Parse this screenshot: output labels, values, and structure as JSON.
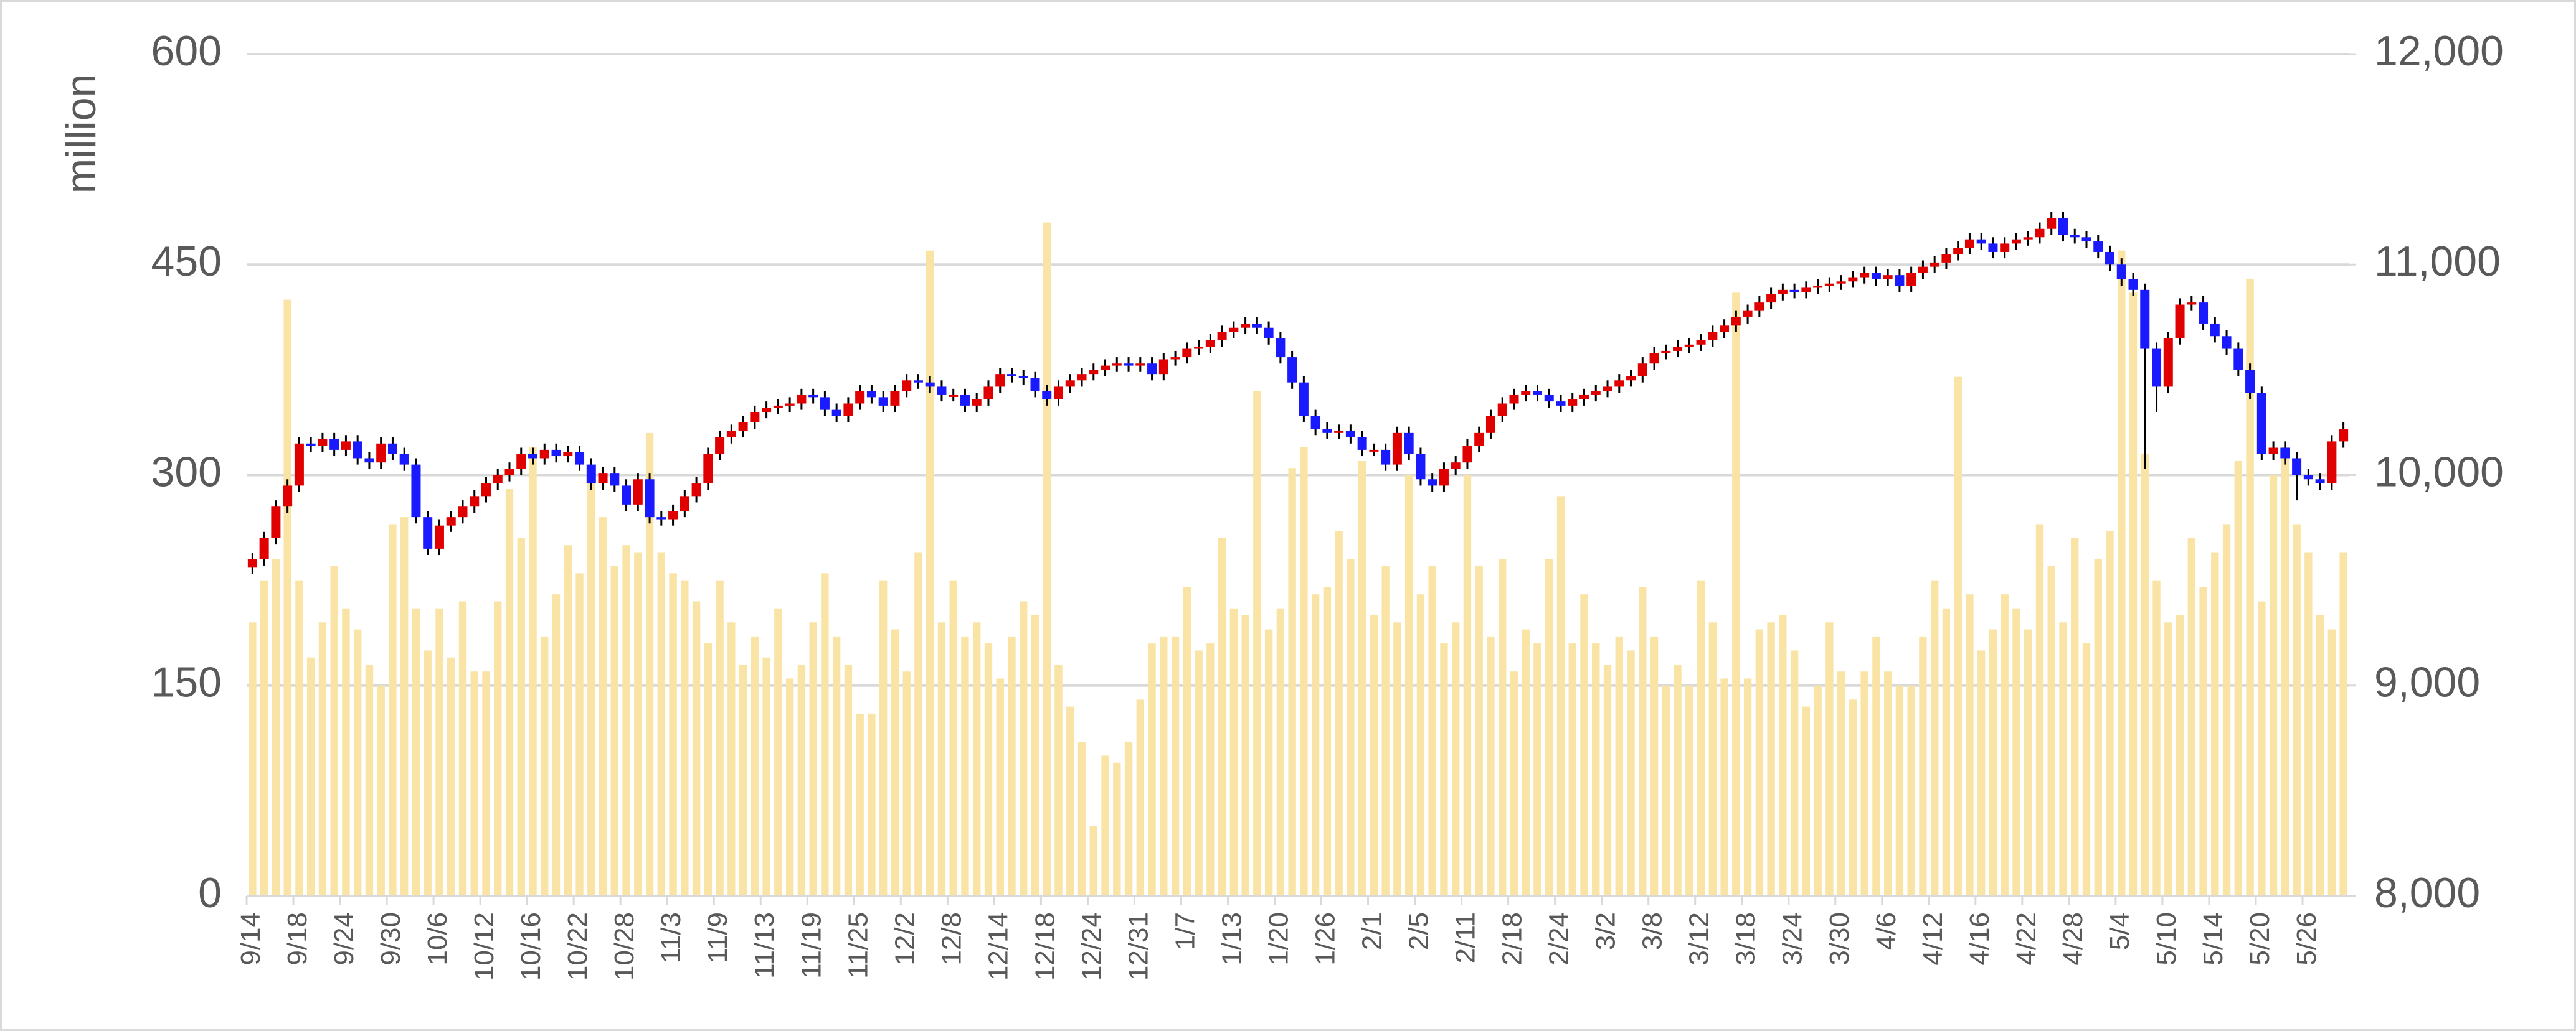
{
  "chart_data": {
    "type": "candlestick",
    "y_label": "million",
    "ylim": [
      0,
      600
    ],
    "yticks": [
      0,
      150,
      300,
      450,
      600
    ],
    "y2lim": [
      8000,
      12000
    ],
    "y2ticks": [
      {
        "value": 8000,
        "label": "8,000"
      },
      {
        "value": 9000,
        "label": "9,000"
      },
      {
        "value": 10000,
        "label": "10,000"
      },
      {
        "value": 11000,
        "label": "11,000"
      },
      {
        "value": 12000,
        "label": "12,000"
      }
    ],
    "grid": true,
    "up_color": "#e00000",
    "down_color": "#1a1aff",
    "wick_color": "#000000",
    "categories": [
      "9/14",
      null,
      null,
      null,
      "9/18",
      null,
      null,
      null,
      "9/24",
      null,
      null,
      null,
      "9/30",
      null,
      null,
      null,
      "10/6",
      null,
      null,
      null,
      "10/12",
      null,
      null,
      null,
      "10/16",
      null,
      null,
      null,
      "10/22",
      null,
      null,
      null,
      "10/28",
      null,
      null,
      null,
      "11/3",
      null,
      null,
      null,
      "11/9",
      null,
      null,
      null,
      "11/13",
      null,
      null,
      null,
      "11/19",
      null,
      null,
      null,
      "11/25",
      null,
      null,
      null,
      "12/2",
      null,
      null,
      null,
      "12/8",
      null,
      null,
      null,
      "12/14",
      null,
      null,
      null,
      "12/18",
      null,
      null,
      null,
      "12/24",
      null,
      null,
      null,
      "12/31",
      null,
      null,
      null,
      "1/7",
      null,
      null,
      null,
      "1/13",
      null,
      null,
      null,
      "1/20",
      null,
      null,
      null,
      "1/26",
      null,
      null,
      null,
      "2/1",
      null,
      null,
      null,
      "2/5",
      null,
      null,
      null,
      "2/11",
      null,
      null,
      null,
      "2/18",
      null,
      null,
      null,
      "2/24",
      null,
      null,
      null,
      "3/2",
      null,
      null,
      null,
      "3/8",
      null,
      null,
      null,
      "3/12",
      null,
      null,
      null,
      "3/18",
      null,
      null,
      null,
      "3/24",
      null,
      null,
      null,
      "3/30",
      null,
      null,
      null,
      "4/6",
      null,
      null,
      null,
      "4/12",
      null,
      null,
      null,
      "4/16",
      null,
      null,
      null,
      "4/22",
      null,
      null,
      null,
      "4/28",
      null,
      null,
      null,
      "5/4",
      null,
      null,
      null,
      "5/10",
      null,
      null,
      null,
      "5/14",
      null,
      null,
      null,
      "5/20",
      null,
      null,
      null,
      "5/26",
      null,
      null,
      null
    ],
    "open": [
      9560,
      9600,
      9700,
      9850,
      9950,
      10150,
      10140,
      10170,
      10120,
      10160,
      10080,
      10060,
      10150,
      10100,
      10050,
      9800,
      9650,
      9760,
      9800,
      9850,
      9900,
      9960,
      10000,
      10030,
      10100,
      10080,
      10120,
      10090,
      10110,
      10050,
      9960,
      10010,
      9950,
      9860,
      9980,
      9800,
      9790,
      9830,
      9900,
      9960,
      10100,
      10180,
      10210,
      10250,
      10300,
      10320,
      10330,
      10340,
      10380,
      10370,
      10310,
      10280,
      10340,
      10400,
      10370,
      10330,
      10400,
      10450,
      10440,
      10420,
      10380,
      10380,
      10330,
      10360,
      10420,
      10480,
      10470,
      10460,
      10400,
      10360,
      10420,
      10450,
      10480,
      10500,
      10520,
      10530,
      10520,
      10530,
      10480,
      10550,
      10560,
      10600,
      10610,
      10640,
      10680,
      10700,
      10720,
      10700,
      10650,
      10560,
      10440,
      10280,
      10220,
      10200,
      10210,
      10180,
      10120,
      10120,
      10050,
      10200,
      10100,
      9980,
      9950,
      10030,
      10060,
      10140,
      10200,
      10280,
      10340,
      10380,
      10400,
      10380,
      10350,
      10330,
      10360,
      10380,
      10400,
      10420,
      10450,
      10470,
      10530,
      10580,
      10590,
      10610,
      10620,
      10640,
      10680,
      10710,
      10750,
      10780,
      10820,
      10860,
      10880,
      10870,
      10890,
      10900,
      10910,
      10920,
      10940,
      10960,
      10930,
      10950,
      10900,
      10960,
      10990,
      11010,
      11050,
      11080,
      11120,
      11100,
      11060,
      11100,
      11120,
      11130,
      11170,
      11220,
      11140,
      11130,
      11110,
      11060,
      11000,
      10930,
      10880,
      10600,
      10420,
      10650,
      10810,
      10820,
      10720,
      10660,
      10600,
      10500,
      10390,
      10100,
      10130,
      10080,
      10000,
      9980,
      9960,
      10160
    ],
    "high": [
      9630,
      9730,
      9880,
      9980,
      10180,
      10180,
      10200,
      10200,
      10190,
      10190,
      10110,
      10180,
      10180,
      10130,
      10080,
      9830,
      9790,
      9830,
      9880,
      9930,
      9990,
      10030,
      10060,
      10130,
      10130,
      10150,
      10150,
      10140,
      10140,
      10080,
      10040,
      10040,
      9980,
      10010,
      10010,
      9830,
      9860,
      9930,
      9990,
      10130,
      10210,
      10240,
      10280,
      10330,
      10350,
      10360,
      10370,
      10410,
      10410,
      10400,
      10340,
      10370,
      10430,
      10430,
      10400,
      10430,
      10480,
      10480,
      10470,
      10450,
      10410,
      10410,
      10390,
      10450,
      10510,
      10510,
      10500,
      10490,
      10430,
      10450,
      10480,
      10510,
      10530,
      10550,
      10560,
      10560,
      10560,
      10560,
      10580,
      10590,
      10630,
      10640,
      10670,
      10710,
      10730,
      10750,
      10750,
      10730,
      10680,
      10590,
      10470,
      10310,
      10250,
      10240,
      10240,
      10210,
      10150,
      10150,
      10230,
      10230,
      10130,
      10010,
      10060,
      10090,
      10170,
      10230,
      10310,
      10370,
      10410,
      10430,
      10430,
      10410,
      10380,
      10390,
      10410,
      10430,
      10450,
      10480,
      10500,
      10560,
      10610,
      10620,
      10640,
      10650,
      10670,
      10710,
      10740,
      10780,
      10810,
      10850,
      10890,
      10910,
      10910,
      10920,
      10930,
      10940,
      10950,
      10970,
      10990,
      10990,
      10980,
      10980,
      10990,
      11020,
      11040,
      11080,
      11110,
      11150,
      11150,
      11130,
      11130,
      11150,
      11160,
      11200,
      11250,
      11250,
      11170,
      11160,
      11140,
      11090,
      11030,
      10960,
      10910,
      10630,
      10680,
      10840,
      10850,
      10850,
      10750,
      10690,
      10630,
      10530,
      10420,
      10160,
      10160,
      10110,
      10030,
      10010,
      10190,
      10250
    ],
    "low": [
      9530,
      9570,
      9670,
      9820,
      9920,
      10110,
      10110,
      10090,
      10090,
      10050,
      10030,
      10030,
      10070,
      10020,
      9770,
      9620,
      9620,
      9730,
      9770,
      9820,
      9870,
      9930,
      9970,
      10000,
      10050,
      10050,
      10060,
      10060,
      10020,
      9930,
      9930,
      9920,
      9830,
      9830,
      9770,
      9760,
      9760,
      9800,
      9870,
      9930,
      10070,
      10150,
      10180,
      10220,
      10270,
      10290,
      10300,
      10310,
      10340,
      10280,
      10250,
      10250,
      10310,
      10340,
      10300,
      10300,
      10370,
      10410,
      10390,
      10350,
      10350,
      10300,
      10300,
      10330,
      10390,
      10440,
      10430,
      10370,
      10330,
      10330,
      10390,
      10420,
      10450,
      10470,
      10490,
      10490,
      10490,
      10450,
      10450,
      10520,
      10530,
      10570,
      10580,
      10610,
      10650,
      10670,
      10670,
      10620,
      10530,
      10410,
      10250,
      10190,
      10170,
      10170,
      10150,
      10090,
      10090,
      10020,
      10020,
      10070,
      9950,
      9920,
      9920,
      10000,
      10030,
      10110,
      10170,
      10250,
      10310,
      10350,
      10350,
      10320,
      10300,
      10300,
      10330,
      10350,
      10370,
      10390,
      10420,
      10440,
      10500,
      10550,
      10560,
      10580,
      10590,
      10610,
      10650,
      10680,
      10720,
      10750,
      10790,
      10830,
      10840,
      10840,
      10860,
      10870,
      10880,
      10890,
      10910,
      10900,
      10900,
      10870,
      10870,
      10930,
      10960,
      10980,
      11020,
      11050,
      11070,
      11030,
      11030,
      11070,
      11090,
      11100,
      11140,
      11110,
      11100,
      11080,
      11030,
      10970,
      10900,
      10850,
      10030,
      10300,
      10390,
      10620,
      10780,
      10690,
      10630,
      10570,
      10470,
      10360,
      10070,
      10070,
      10050,
      9880,
      9950,
      9930,
      9930,
      10130
    ],
    "close": [
      9600,
      9700,
      9850,
      9950,
      10150,
      10140,
      10170,
      10120,
      10160,
      10080,
      10060,
      10150,
      10100,
      10050,
      9800,
      9650,
      9760,
      9800,
      9850,
      9900,
      9960,
      10000,
      10030,
      10100,
      10080,
      10120,
      10090,
      10110,
      10050,
      9960,
      10010,
      9950,
      9860,
      9980,
      9800,
      9790,
      9830,
      9900,
      9960,
      10100,
      10180,
      10210,
      10250,
      10300,
      10320,
      10330,
      10340,
      10380,
      10370,
      10310,
      10280,
      10340,
      10400,
      10370,
      10330,
      10400,
      10450,
      10440,
      10420,
      10380,
      10380,
      10330,
      10360,
      10420,
      10480,
      10470,
      10460,
      10400,
      10360,
      10420,
      10450,
      10480,
      10500,
      10520,
      10530,
      10520,
      10530,
      10480,
      10550,
      10560,
      10600,
      10610,
      10640,
      10680,
      10700,
      10720,
      10700,
      10650,
      10560,
      10440,
      10280,
      10220,
      10200,
      10210,
      10180,
      10120,
      10120,
      10050,
      10200,
      10100,
      9980,
      9950,
      10030,
      10060,
      10140,
      10200,
      10280,
      10340,
      10380,
      10400,
      10380,
      10350,
      10330,
      10360,
      10380,
      10400,
      10420,
      10450,
      10470,
      10530,
      10580,
      10590,
      10610,
      10620,
      10640,
      10680,
      10710,
      10750,
      10780,
      10820,
      10860,
      10880,
      10870,
      10890,
      10900,
      10910,
      10920,
      10940,
      10960,
      10930,
      10950,
      10900,
      10960,
      10990,
      11010,
      11050,
      11080,
      11120,
      11100,
      11060,
      11100,
      11120,
      11130,
      11170,
      11220,
      11140,
      11130,
      11110,
      11060,
      11000,
      10930,
      10880,
      10600,
      10420,
      10650,
      10810,
      10820,
      10720,
      10660,
      10600,
      10500,
      10390,
      10100,
      10130,
      10080,
      10000,
      9980,
      9960,
      10160,
      10220
    ],
    "volume": {
      "color": "#f9e4a6",
      "values": [
        195,
        225,
        240,
        425,
        225,
        170,
        195,
        235,
        205,
        190,
        165,
        150,
        265,
        270,
        205,
        175,
        205,
        170,
        210,
        160,
        160,
        210,
        290,
        255,
        320,
        185,
        215,
        250,
        230,
        300,
        270,
        235,
        250,
        245,
        330,
        245,
        230,
        225,
        210,
        180,
        225,
        195,
        165,
        185,
        170,
        205,
        155,
        165,
        195,
        230,
        185,
        165,
        130,
        130,
        225,
        190,
        160,
        245,
        460,
        195,
        225,
        185,
        195,
        180,
        155,
        185,
        210,
        200,
        480,
        165,
        135,
        110,
        50,
        100,
        95,
        110,
        140,
        180,
        185,
        185,
        220,
        175,
        180,
        255,
        205,
        200,
        360,
        190,
        205,
        305,
        320,
        215,
        220,
        260,
        240,
        310,
        200,
        235,
        195,
        300,
        215,
        235,
        180,
        195,
        300,
        235,
        185,
        240,
        160,
        190,
        180,
        240,
        285,
        180,
        215,
        180,
        165,
        185,
        175,
        220,
        185,
        150,
        165,
        150,
        225,
        195,
        155,
        430,
        155,
        190,
        195,
        200,
        175,
        135,
        150,
        195,
        160,
        140,
        160,
        185,
        160,
        150,
        150,
        185,
        225,
        205,
        370,
        215,
        175,
        190,
        215,
        205,
        190,
        265,
        235,
        195,
        255,
        180,
        240,
        260,
        460,
        430,
        315,
        225,
        195,
        200,
        255,
        220,
        245,
        265,
        310,
        440,
        210,
        300,
        320,
        265,
        245,
        200,
        190,
        245
      ]
    }
  }
}
